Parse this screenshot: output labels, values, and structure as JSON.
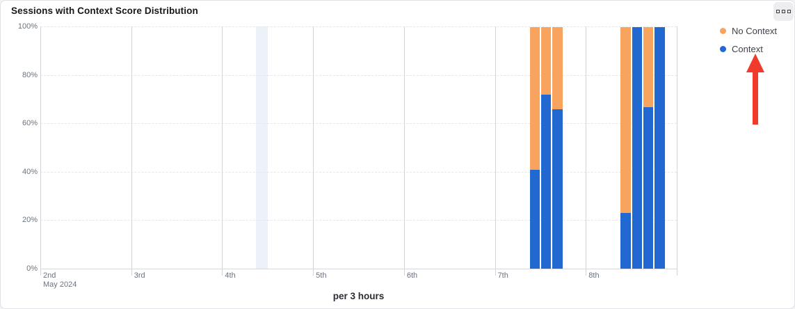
{
  "card": {
    "title": "Sessions with Context Score Distribution",
    "more_options": "more-options"
  },
  "chart_data": {
    "type": "bar",
    "stacked": true,
    "value_unit": "percent",
    "title": "Sessions with Context Score Distribution",
    "xlabel": "per 3 hours",
    "ylabel": "",
    "ylim": [
      0,
      100
    ],
    "grid": "horizontal-dashed, vertical-solid-per-day",
    "legend_position": "top-right",
    "y_tick_labels": [
      "0%",
      "20%",
      "40%",
      "60%",
      "80%",
      "100%"
    ],
    "x_axis": {
      "tick_labels": [
        "2nd",
        "3rd",
        "4th",
        "5th",
        "6th",
        "7th",
        "8th"
      ],
      "first_tick_sublabel": "May 2024",
      "days_span": 7,
      "slots_per_day": 8,
      "slot_hours": 3
    },
    "series": [
      {
        "name": "No Context",
        "color": "#f8a45e"
      },
      {
        "name": "Context",
        "color": "#2268d1"
      }
    ],
    "bars": [
      {
        "day_label": "7th",
        "day_index": 5,
        "slot": 3,
        "context_pct": 41,
        "no_context_pct": 59
      },
      {
        "day_label": "7th",
        "day_index": 5,
        "slot": 4,
        "context_pct": 72,
        "no_context_pct": 28
      },
      {
        "day_label": "7th",
        "day_index": 5,
        "slot": 5,
        "context_pct": 66,
        "no_context_pct": 34
      },
      {
        "day_label": "8th",
        "day_index": 6,
        "slot": 3,
        "context_pct": 23,
        "no_context_pct": 77
      },
      {
        "day_label": "8th",
        "day_index": 6,
        "slot": 4,
        "context_pct": 100,
        "no_context_pct": 0
      },
      {
        "day_label": "8th",
        "day_index": 6,
        "slot": 5,
        "context_pct": 67,
        "no_context_pct": 33
      },
      {
        "day_label": "8th",
        "day_index": 6,
        "slot": 6,
        "context_pct": 100,
        "no_context_pct": 0
      }
    ],
    "highlight_band": {
      "day_index": 2,
      "slot": 3,
      "color": "#edf2f8"
    }
  },
  "legend": {
    "items": [
      {
        "label": "No Context",
        "color": "#f8a45e"
      },
      {
        "label": "Context",
        "color": "#2268d1"
      }
    ]
  },
  "annotations": {
    "red_arrow": {
      "points_to": "Context",
      "color": "#f23a2b"
    }
  }
}
